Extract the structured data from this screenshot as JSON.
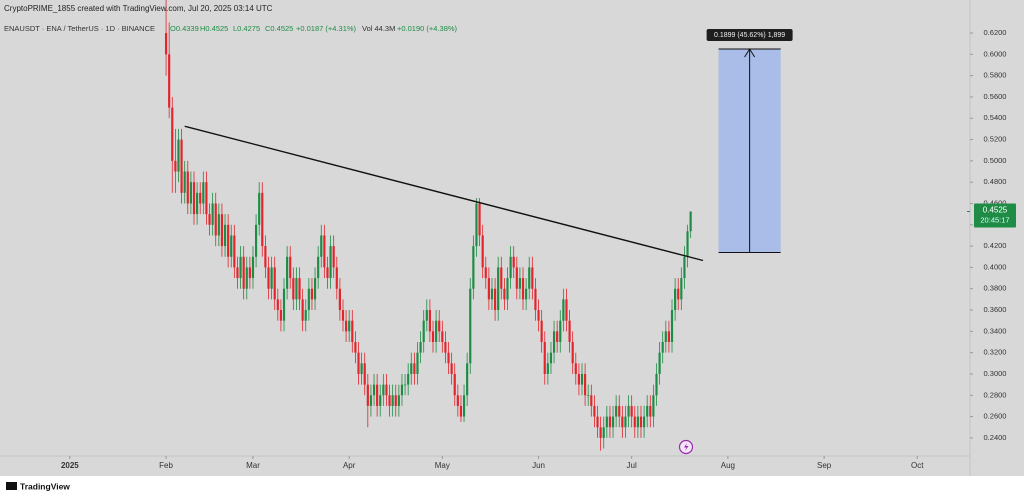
{
  "header": {
    "watermark": "CryptoPRIME_1855 created with TradingView.com, Jul 20, 2025 03:14 UTC",
    "symbol": "ENAUSDT · ENA / TetherUS · 1D · BINANCE",
    "ohlc": [
      "O0.4339",
      "H0.4525",
      "L0.4275",
      "C0.4525",
      "+0.0187 (+4.31%)"
    ],
    "volume": "Vol 44.3M",
    "volume_change": "+0.0190 (+4.38%)"
  },
  "footer": {
    "brand": "TradingView"
  },
  "chart_data": {
    "type": "candlestick",
    "up_color": "#1e8c45",
    "down_color": "#e3242b",
    "xlim": [
      -22.5,
      290
    ],
    "ylim": [
      0.223,
      0.651
    ],
    "xticks": [
      {
        "value": 0,
        "label": "2025"
      },
      {
        "value": 31,
        "label": "Feb"
      },
      {
        "value": 59,
        "label": "Mar"
      },
      {
        "value": 90,
        "label": "Apr"
      },
      {
        "value": 120,
        "label": "May"
      },
      {
        "value": 151,
        "label": "Jun"
      },
      {
        "value": 181,
        "label": "Jul"
      },
      {
        "value": 212,
        "label": "Aug"
      },
      {
        "value": 243,
        "label": "Sep"
      },
      {
        "value": 273,
        "label": "Oct"
      }
    ],
    "yticks": [
      {
        "value": 0.24,
        "label": "0.2400"
      },
      {
        "value": 0.26,
        "label": "0.2600"
      },
      {
        "value": 0.28,
        "label": "0.2800"
      },
      {
        "value": 0.3,
        "label": "0.3000"
      },
      {
        "value": 0.32,
        "label": "0.3200"
      },
      {
        "value": 0.34,
        "label": "0.3400"
      },
      {
        "value": 0.36,
        "label": "0.3600"
      },
      {
        "value": 0.38,
        "label": "0.3800"
      },
      {
        "value": 0.4,
        "label": "0.4000"
      },
      {
        "value": 0.42,
        "label": "0.4200"
      },
      {
        "value": 0.44,
        "label": "0.4400"
      },
      {
        "value": 0.46,
        "label": "0.4600"
      },
      {
        "value": 0.48,
        "label": "0.4800"
      },
      {
        "value": 0.5,
        "label": "0.5000"
      },
      {
        "value": 0.52,
        "label": "0.5200"
      },
      {
        "value": 0.54,
        "label": "0.5400"
      },
      {
        "value": 0.56,
        "label": "0.5600"
      },
      {
        "value": 0.58,
        "label": "0.5800"
      },
      {
        "value": 0.6,
        "label": "0.6000"
      },
      {
        "value": 0.62,
        "label": "0.6200"
      }
    ],
    "last_price": 0.4525,
    "countdown": "20:45:17",
    "trendline": {
      "x": [
        37,
        204
      ],
      "y": [
        0.5325,
        0.4065
      ],
      "color": "#111111"
    },
    "measure": {
      "x": [
        209,
        229
      ],
      "y": [
        0.414,
        0.605
      ],
      "color": "#a9bde8",
      "label": "0.1899 (45.62%) 1,899"
    },
    "x": [
      31,
      32,
      33,
      34,
      35,
      36,
      37,
      38,
      39,
      40,
      41,
      42,
      43,
      44,
      45,
      46,
      47,
      48,
      49,
      50,
      51,
      52,
      53,
      54,
      55,
      56,
      57,
      58,
      59,
      60,
      61,
      62,
      63,
      64,
      65,
      66,
      67,
      68,
      69,
      70,
      71,
      72,
      73,
      74,
      75,
      76,
      77,
      78,
      79,
      80,
      81,
      82,
      83,
      84,
      85,
      86,
      87,
      88,
      89,
      90,
      91,
      92,
      93,
      94,
      95,
      96,
      97,
      98,
      99,
      100,
      101,
      102,
      103,
      104,
      105,
      106,
      107,
      108,
      109,
      110,
      111,
      112,
      113,
      114,
      115,
      116,
      117,
      118,
      119,
      120,
      121,
      122,
      123,
      124,
      125,
      126,
      127,
      128,
      129,
      130,
      131,
      132,
      133,
      134,
      135,
      136,
      137,
      138,
      139,
      140,
      141,
      142,
      143,
      144,
      145,
      146,
      147,
      148,
      149,
      150,
      151,
      152,
      153,
      154,
      155,
      156,
      157,
      158,
      159,
      160,
      161,
      162,
      163,
      164,
      165,
      166,
      167,
      168,
      169,
      170,
      171,
      172,
      173,
      174,
      175,
      176,
      177,
      178,
      179,
      180,
      181,
      182,
      183,
      184,
      185,
      186,
      187,
      188,
      189,
      190,
      191,
      192,
      193,
      194,
      195,
      196,
      197,
      198,
      199,
      200
    ],
    "values": [
      [
        0.62,
        0.655,
        0.58,
        0.6
      ],
      [
        0.6,
        0.63,
        0.54,
        0.55
      ],
      [
        0.55,
        0.56,
        0.47,
        0.5
      ],
      [
        0.5,
        0.53,
        0.47,
        0.49
      ],
      [
        0.49,
        0.53,
        0.48,
        0.52
      ],
      [
        0.52,
        0.53,
        0.46,
        0.47
      ],
      [
        0.47,
        0.5,
        0.46,
        0.49
      ],
      [
        0.49,
        0.5,
        0.45,
        0.46
      ],
      [
        0.46,
        0.49,
        0.45,
        0.48
      ],
      [
        0.48,
        0.49,
        0.44,
        0.45
      ],
      [
        0.45,
        0.48,
        0.44,
        0.47
      ],
      [
        0.47,
        0.48,
        0.45,
        0.46
      ],
      [
        0.46,
        0.49,
        0.45,
        0.48
      ],
      [
        0.48,
        0.49,
        0.44,
        0.45
      ],
      [
        0.45,
        0.46,
        0.43,
        0.44
      ],
      [
        0.44,
        0.47,
        0.43,
        0.46
      ],
      [
        0.46,
        0.47,
        0.42,
        0.43
      ],
      [
        0.43,
        0.46,
        0.42,
        0.45
      ],
      [
        0.45,
        0.46,
        0.41,
        0.42
      ],
      [
        0.42,
        0.45,
        0.41,
        0.44
      ],
      [
        0.44,
        0.45,
        0.4,
        0.41
      ],
      [
        0.41,
        0.44,
        0.4,
        0.43
      ],
      [
        0.43,
        0.44,
        0.39,
        0.4
      ],
      [
        0.4,
        0.41,
        0.38,
        0.39
      ],
      [
        0.39,
        0.42,
        0.38,
        0.41
      ],
      [
        0.41,
        0.42,
        0.37,
        0.38
      ],
      [
        0.38,
        0.41,
        0.37,
        0.4
      ],
      [
        0.4,
        0.41,
        0.38,
        0.39
      ],
      [
        0.39,
        0.42,
        0.38,
        0.41
      ],
      [
        0.41,
        0.45,
        0.4,
        0.44
      ],
      [
        0.44,
        0.48,
        0.43,
        0.47
      ],
      [
        0.47,
        0.48,
        0.41,
        0.42
      ],
      [
        0.42,
        0.43,
        0.39,
        0.4
      ],
      [
        0.4,
        0.41,
        0.37,
        0.38
      ],
      [
        0.38,
        0.41,
        0.37,
        0.4
      ],
      [
        0.4,
        0.41,
        0.36,
        0.37
      ],
      [
        0.37,
        0.38,
        0.35,
        0.36
      ],
      [
        0.36,
        0.37,
        0.34,
        0.35
      ],
      [
        0.35,
        0.39,
        0.34,
        0.38
      ],
      [
        0.38,
        0.42,
        0.37,
        0.41
      ],
      [
        0.41,
        0.42,
        0.38,
        0.39
      ],
      [
        0.39,
        0.4,
        0.36,
        0.37
      ],
      [
        0.37,
        0.4,
        0.36,
        0.39
      ],
      [
        0.39,
        0.4,
        0.36,
        0.37
      ],
      [
        0.37,
        0.38,
        0.34,
        0.35
      ],
      [
        0.35,
        0.37,
        0.34,
        0.36
      ],
      [
        0.36,
        0.39,
        0.35,
        0.38
      ],
      [
        0.38,
        0.39,
        0.36,
        0.37
      ],
      [
        0.37,
        0.4,
        0.36,
        0.39
      ],
      [
        0.39,
        0.42,
        0.38,
        0.41
      ],
      [
        0.41,
        0.44,
        0.4,
        0.43
      ],
      [
        0.43,
        0.44,
        0.39,
        0.4
      ],
      [
        0.4,
        0.41,
        0.38,
        0.39
      ],
      [
        0.39,
        0.43,
        0.38,
        0.42
      ],
      [
        0.42,
        0.43,
        0.39,
        0.4
      ],
      [
        0.4,
        0.41,
        0.37,
        0.38
      ],
      [
        0.38,
        0.39,
        0.35,
        0.36
      ],
      [
        0.36,
        0.37,
        0.34,
        0.35
      ],
      [
        0.35,
        0.36,
        0.33,
        0.34
      ],
      [
        0.34,
        0.36,
        0.33,
        0.35
      ],
      [
        0.35,
        0.36,
        0.32,
        0.33
      ],
      [
        0.33,
        0.34,
        0.31,
        0.32
      ],
      [
        0.32,
        0.33,
        0.29,
        0.3
      ],
      [
        0.3,
        0.32,
        0.29,
        0.31
      ],
      [
        0.31,
        0.32,
        0.28,
        0.29
      ],
      [
        0.29,
        0.3,
        0.25,
        0.27
      ],
      [
        0.27,
        0.29,
        0.26,
        0.28
      ],
      [
        0.28,
        0.3,
        0.27,
        0.29
      ],
      [
        0.29,
        0.3,
        0.26,
        0.27
      ],
      [
        0.27,
        0.29,
        0.26,
        0.28
      ],
      [
        0.28,
        0.3,
        0.27,
        0.29
      ],
      [
        0.29,
        0.3,
        0.27,
        0.28
      ],
      [
        0.28,
        0.29,
        0.26,
        0.27
      ],
      [
        0.27,
        0.29,
        0.26,
        0.28
      ],
      [
        0.28,
        0.29,
        0.26,
        0.27
      ],
      [
        0.27,
        0.29,
        0.26,
        0.28
      ],
      [
        0.28,
        0.3,
        0.27,
        0.29
      ],
      [
        0.29,
        0.3,
        0.28,
        0.29
      ],
      [
        0.29,
        0.31,
        0.28,
        0.3
      ],
      [
        0.3,
        0.32,
        0.29,
        0.31
      ],
      [
        0.31,
        0.32,
        0.29,
        0.3
      ],
      [
        0.3,
        0.33,
        0.29,
        0.32
      ],
      [
        0.32,
        0.34,
        0.31,
        0.33
      ],
      [
        0.33,
        0.36,
        0.32,
        0.35
      ],
      [
        0.35,
        0.37,
        0.34,
        0.36
      ],
      [
        0.36,
        0.37,
        0.33,
        0.34
      ],
      [
        0.34,
        0.35,
        0.32,
        0.33
      ],
      [
        0.33,
        0.36,
        0.32,
        0.35
      ],
      [
        0.35,
        0.36,
        0.33,
        0.34
      ],
      [
        0.34,
        0.35,
        0.32,
        0.33
      ],
      [
        0.33,
        0.34,
        0.31,
        0.32
      ],
      [
        0.32,
        0.33,
        0.3,
        0.31
      ],
      [
        0.31,
        0.32,
        0.29,
        0.3
      ],
      [
        0.3,
        0.31,
        0.27,
        0.28
      ],
      [
        0.28,
        0.29,
        0.26,
        0.27
      ],
      [
        0.27,
        0.28,
        0.255,
        0.26
      ],
      [
        0.26,
        0.29,
        0.255,
        0.28
      ],
      [
        0.28,
        0.32,
        0.27,
        0.31
      ],
      [
        0.31,
        0.39,
        0.3,
        0.38
      ],
      [
        0.38,
        0.43,
        0.37,
        0.42
      ],
      [
        0.42,
        0.465,
        0.41,
        0.46
      ],
      [
        0.46,
        0.465,
        0.42,
        0.43
      ],
      [
        0.43,
        0.44,
        0.39,
        0.4
      ],
      [
        0.4,
        0.41,
        0.38,
        0.39
      ],
      [
        0.39,
        0.4,
        0.36,
        0.37
      ],
      [
        0.37,
        0.39,
        0.36,
        0.38
      ],
      [
        0.38,
        0.39,
        0.35,
        0.36
      ],
      [
        0.36,
        0.41,
        0.35,
        0.4
      ],
      [
        0.4,
        0.41,
        0.37,
        0.38
      ],
      [
        0.38,
        0.39,
        0.36,
        0.37
      ],
      [
        0.37,
        0.4,
        0.36,
        0.39
      ],
      [
        0.39,
        0.42,
        0.38,
        0.41
      ],
      [
        0.41,
        0.42,
        0.39,
        0.4
      ],
      [
        0.4,
        0.41,
        0.37,
        0.38
      ],
      [
        0.38,
        0.4,
        0.37,
        0.39
      ],
      [
        0.39,
        0.4,
        0.36,
        0.37
      ],
      [
        0.37,
        0.39,
        0.36,
        0.38
      ],
      [
        0.38,
        0.41,
        0.37,
        0.4
      ],
      [
        0.4,
        0.41,
        0.37,
        0.38
      ],
      [
        0.38,
        0.39,
        0.35,
        0.36
      ],
      [
        0.36,
        0.37,
        0.34,
        0.35
      ],
      [
        0.35,
        0.36,
        0.32,
        0.33
      ],
      [
        0.33,
        0.34,
        0.29,
        0.3
      ],
      [
        0.3,
        0.32,
        0.29,
        0.31
      ],
      [
        0.31,
        0.33,
        0.3,
        0.32
      ],
      [
        0.32,
        0.35,
        0.31,
        0.34
      ],
      [
        0.34,
        0.35,
        0.32,
        0.33
      ],
      [
        0.33,
        0.36,
        0.32,
        0.35
      ],
      [
        0.35,
        0.38,
        0.34,
        0.37
      ],
      [
        0.37,
        0.38,
        0.34,
        0.35
      ],
      [
        0.35,
        0.36,
        0.32,
        0.33
      ],
      [
        0.33,
        0.34,
        0.3,
        0.31
      ],
      [
        0.31,
        0.32,
        0.29,
        0.3
      ],
      [
        0.3,
        0.31,
        0.28,
        0.29
      ],
      [
        0.29,
        0.31,
        0.28,
        0.3
      ],
      [
        0.3,
        0.31,
        0.27,
        0.28
      ],
      [
        0.28,
        0.29,
        0.27,
        0.28
      ],
      [
        0.28,
        0.29,
        0.26,
        0.27
      ],
      [
        0.27,
        0.28,
        0.25,
        0.26
      ],
      [
        0.26,
        0.27,
        0.24,
        0.25
      ],
      [
        0.25,
        0.26,
        0.228,
        0.24
      ],
      [
        0.24,
        0.26,
        0.23,
        0.25
      ],
      [
        0.25,
        0.27,
        0.24,
        0.26
      ],
      [
        0.26,
        0.27,
        0.24,
        0.25
      ],
      [
        0.25,
        0.27,
        0.24,
        0.26
      ],
      [
        0.26,
        0.28,
        0.25,
        0.27
      ],
      [
        0.27,
        0.28,
        0.25,
        0.26
      ],
      [
        0.26,
        0.27,
        0.24,
        0.25
      ],
      [
        0.25,
        0.27,
        0.24,
        0.26
      ],
      [
        0.26,
        0.28,
        0.25,
        0.27
      ],
      [
        0.27,
        0.28,
        0.25,
        0.26
      ],
      [
        0.26,
        0.27,
        0.24,
        0.25
      ],
      [
        0.25,
        0.27,
        0.24,
        0.26
      ],
      [
        0.26,
        0.27,
        0.24,
        0.25
      ],
      [
        0.25,
        0.27,
        0.24,
        0.26
      ],
      [
        0.26,
        0.28,
        0.25,
        0.27
      ],
      [
        0.27,
        0.28,
        0.25,
        0.26
      ],
      [
        0.26,
        0.29,
        0.25,
        0.28
      ],
      [
        0.28,
        0.31,
        0.27,
        0.3
      ],
      [
        0.3,
        0.33,
        0.29,
        0.32
      ],
      [
        0.32,
        0.34,
        0.31,
        0.33
      ],
      [
        0.33,
        0.35,
        0.32,
        0.34
      ],
      [
        0.34,
        0.35,
        0.32,
        0.33
      ],
      [
        0.33,
        0.37,
        0.32,
        0.36
      ],
      [
        0.36,
        0.39,
        0.35,
        0.38
      ],
      [
        0.38,
        0.39,
        0.36,
        0.37
      ],
      [
        0.37,
        0.4,
        0.36,
        0.39
      ],
      [
        0.39,
        0.42,
        0.38,
        0.41
      ],
      [
        0.41,
        0.44,
        0.4,
        0.4339
      ],
      [
        0.4339,
        0.4525,
        0.4275,
        0.4525
      ]
    ]
  }
}
